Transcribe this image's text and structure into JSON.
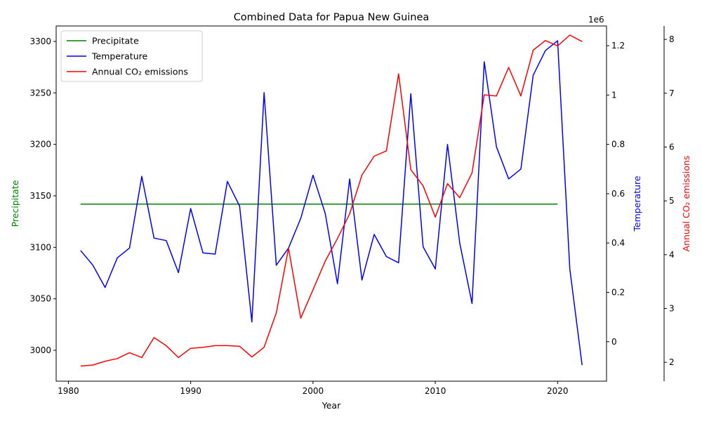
{
  "chart_data": {
    "type": "line",
    "title": "Combined Data for Papua New Guinea",
    "xlabel": "Year",
    "xlim": [
      1979,
      2024
    ],
    "x_ticks": [
      1980,
      1990,
      2000,
      2010,
      2020
    ],
    "legend": {
      "placement": "top-left"
    },
    "grid": false,
    "axes": {
      "left": {
        "label": "Precipitate",
        "color": "#008000",
        "ylim": [
          2970,
          3315
        ],
        "ticks": [
          3000,
          3050,
          3100,
          3150,
          3200,
          3250,
          3300
        ]
      },
      "right1": {
        "label": "Temperature",
        "color": "#0000ff",
        "ylim": [
          -0.16,
          1.28
        ],
        "ticks": [
          0.0,
          0.2,
          0.4,
          0.6,
          0.8,
          1.0,
          1.2
        ]
      },
      "right2": {
        "label": "Annual CO₂ emissions",
        "offset_label": "1e6",
        "color": "#ff0000",
        "ylim": [
          1.65,
          8.25
        ],
        "ticks": [
          2,
          3,
          4,
          5,
          6,
          7,
          8
        ]
      }
    },
    "series": [
      {
        "name": "Precipitate",
        "axis": "left",
        "color": "#008000",
        "x": [
          1981,
          1982,
          1983,
          1984,
          1985,
          1986,
          1987,
          1988,
          1989,
          1990,
          1991,
          1992,
          1993,
          1994,
          1995,
          1996,
          1997,
          1998,
          1999,
          2000,
          2001,
          2002,
          2003,
          2004,
          2005,
          2006,
          2007,
          2008,
          2009,
          2010,
          2011,
          2012,
          2013,
          2014,
          2015,
          2016,
          2017,
          2018,
          2019,
          2020
        ],
        "values": [
          3142,
          3142,
          3142,
          3142,
          3142,
          3142,
          3142,
          3142,
          3142,
          3142,
          3142,
          3142,
          3142,
          3142,
          3142,
          3142,
          3142,
          3142,
          3142,
          3142,
          3142,
          3142,
          3142,
          3142,
          3142,
          3142,
          3142,
          3142,
          3142,
          3142,
          3142,
          3142,
          3142,
          3142,
          3142,
          3142,
          3142,
          3142,
          3142,
          3142
        ]
      },
      {
        "name": "Temperature",
        "axis": "right1",
        "color": "#0000ff",
        "x": [
          1981,
          1982,
          1983,
          1984,
          1985,
          1986,
          1987,
          1988,
          1989,
          1990,
          1991,
          1992,
          1993,
          1994,
          1995,
          1996,
          1997,
          1998,
          1999,
          2000,
          2001,
          2002,
          2003,
          2004,
          2005,
          2006,
          2007,
          2008,
          2009,
          2010,
          2011,
          2012,
          2013,
          2014,
          2015,
          2016,
          2017,
          2018,
          2019,
          2020,
          2021,
          2022
        ],
        "values": [
          0.37,
          0.31,
          0.22,
          0.34,
          0.38,
          0.67,
          0.42,
          0.41,
          0.28,
          0.54,
          0.36,
          0.355,
          0.65,
          0.55,
          0.08,
          1.01,
          0.31,
          0.38,
          0.5,
          0.675,
          0.52,
          0.235,
          0.66,
          0.25,
          0.435,
          0.345,
          0.32,
          1.005,
          0.385,
          0.295,
          0.8,
          0.4,
          0.155,
          1.135,
          0.79,
          0.66,
          0.7,
          1.08,
          1.18,
          1.22,
          0.295,
          -0.095
        ]
      },
      {
        "name": "Annual CO₂ emissions",
        "axis": "right2",
        "color": "#ff0000",
        "x": [
          1981,
          1982,
          1983,
          1984,
          1985,
          1986,
          1987,
          1988,
          1989,
          1990,
          1991,
          1992,
          1993,
          1994,
          1995,
          1996,
          1997,
          1998,
          1999,
          2000,
          2001,
          2002,
          2003,
          2004,
          2005,
          2006,
          2007,
          2008,
          2009,
          2010,
          2011,
          2012,
          2013,
          2014,
          2015,
          2016,
          2017,
          2018,
          2019,
          2020,
          2021,
          2022
        ],
        "values": [
          1.93,
          1.95,
          2.02,
          2.07,
          2.18,
          2.09,
          2.46,
          2.31,
          2.09,
          2.26,
          2.28,
          2.31,
          2.31,
          2.3,
          2.1,
          2.28,
          2.92,
          4.12,
          2.82,
          3.35,
          3.88,
          4.3,
          4.76,
          5.48,
          5.83,
          5.93,
          7.36,
          5.58,
          5.28,
          4.7,
          5.32,
          5.06,
          5.52,
          6.97,
          6.95,
          7.48,
          6.95,
          7.8,
          7.98,
          7.88,
          8.08,
          7.96
        ]
      }
    ]
  }
}
